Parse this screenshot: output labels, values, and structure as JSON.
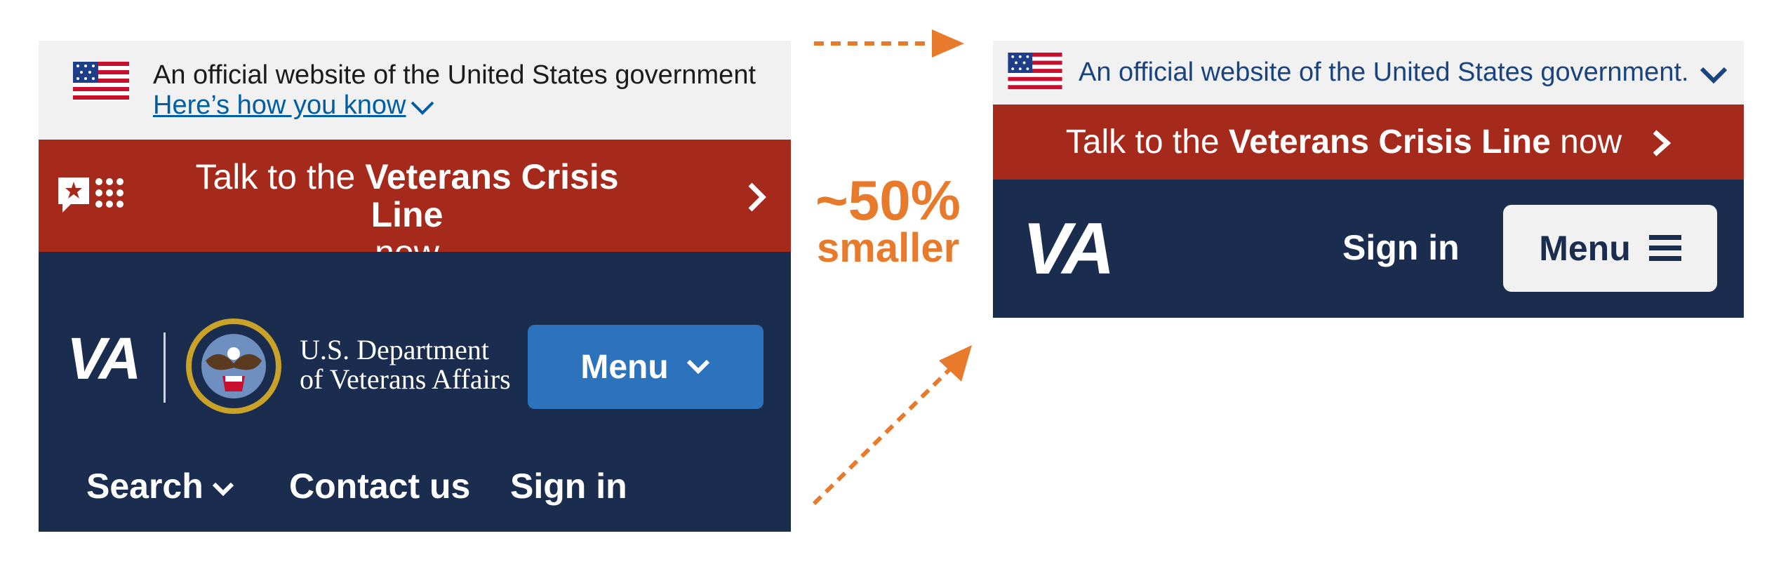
{
  "old_header": {
    "banner": {
      "official_text": "An official website of the United States government",
      "how_you_know": "Here’s how you know"
    },
    "crisis": {
      "prefix": "Talk to the ",
      "bold": "Veterans Crisis Line",
      "suffix": "now"
    },
    "nav": {
      "logo": "VA",
      "department_line1": "U.S. Department",
      "department_line2": "of Veterans Affairs",
      "menu_label": "Menu",
      "search_label": "Search",
      "contact_label": "Contact us",
      "signin_label": "Sign in"
    }
  },
  "comparison": {
    "label_line1": "~50%",
    "label_line2": "smaller",
    "accent_color": "#e87a2c"
  },
  "new_header": {
    "banner": {
      "official_text": "An official website of the United States government."
    },
    "crisis": {
      "prefix": "Talk to the ",
      "bold": "Veterans Crisis Line",
      "suffix": " now"
    },
    "nav": {
      "logo": "VA",
      "signin_label": "Sign in",
      "menu_label": "Menu"
    }
  },
  "colors": {
    "banner_bg": "#f1f1f1",
    "crisis_red": "#a52a1c",
    "navy": "#1b2d4f",
    "menu_blue": "#2d72bc",
    "link_blue": "#005ea2"
  },
  "icons": [
    "us-flag-icon",
    "chevron-down-icon",
    "crisis-line-icon",
    "chevron-right-icon",
    "va-seal-icon",
    "hamburger-icon",
    "dashed-arrow-icon"
  ]
}
